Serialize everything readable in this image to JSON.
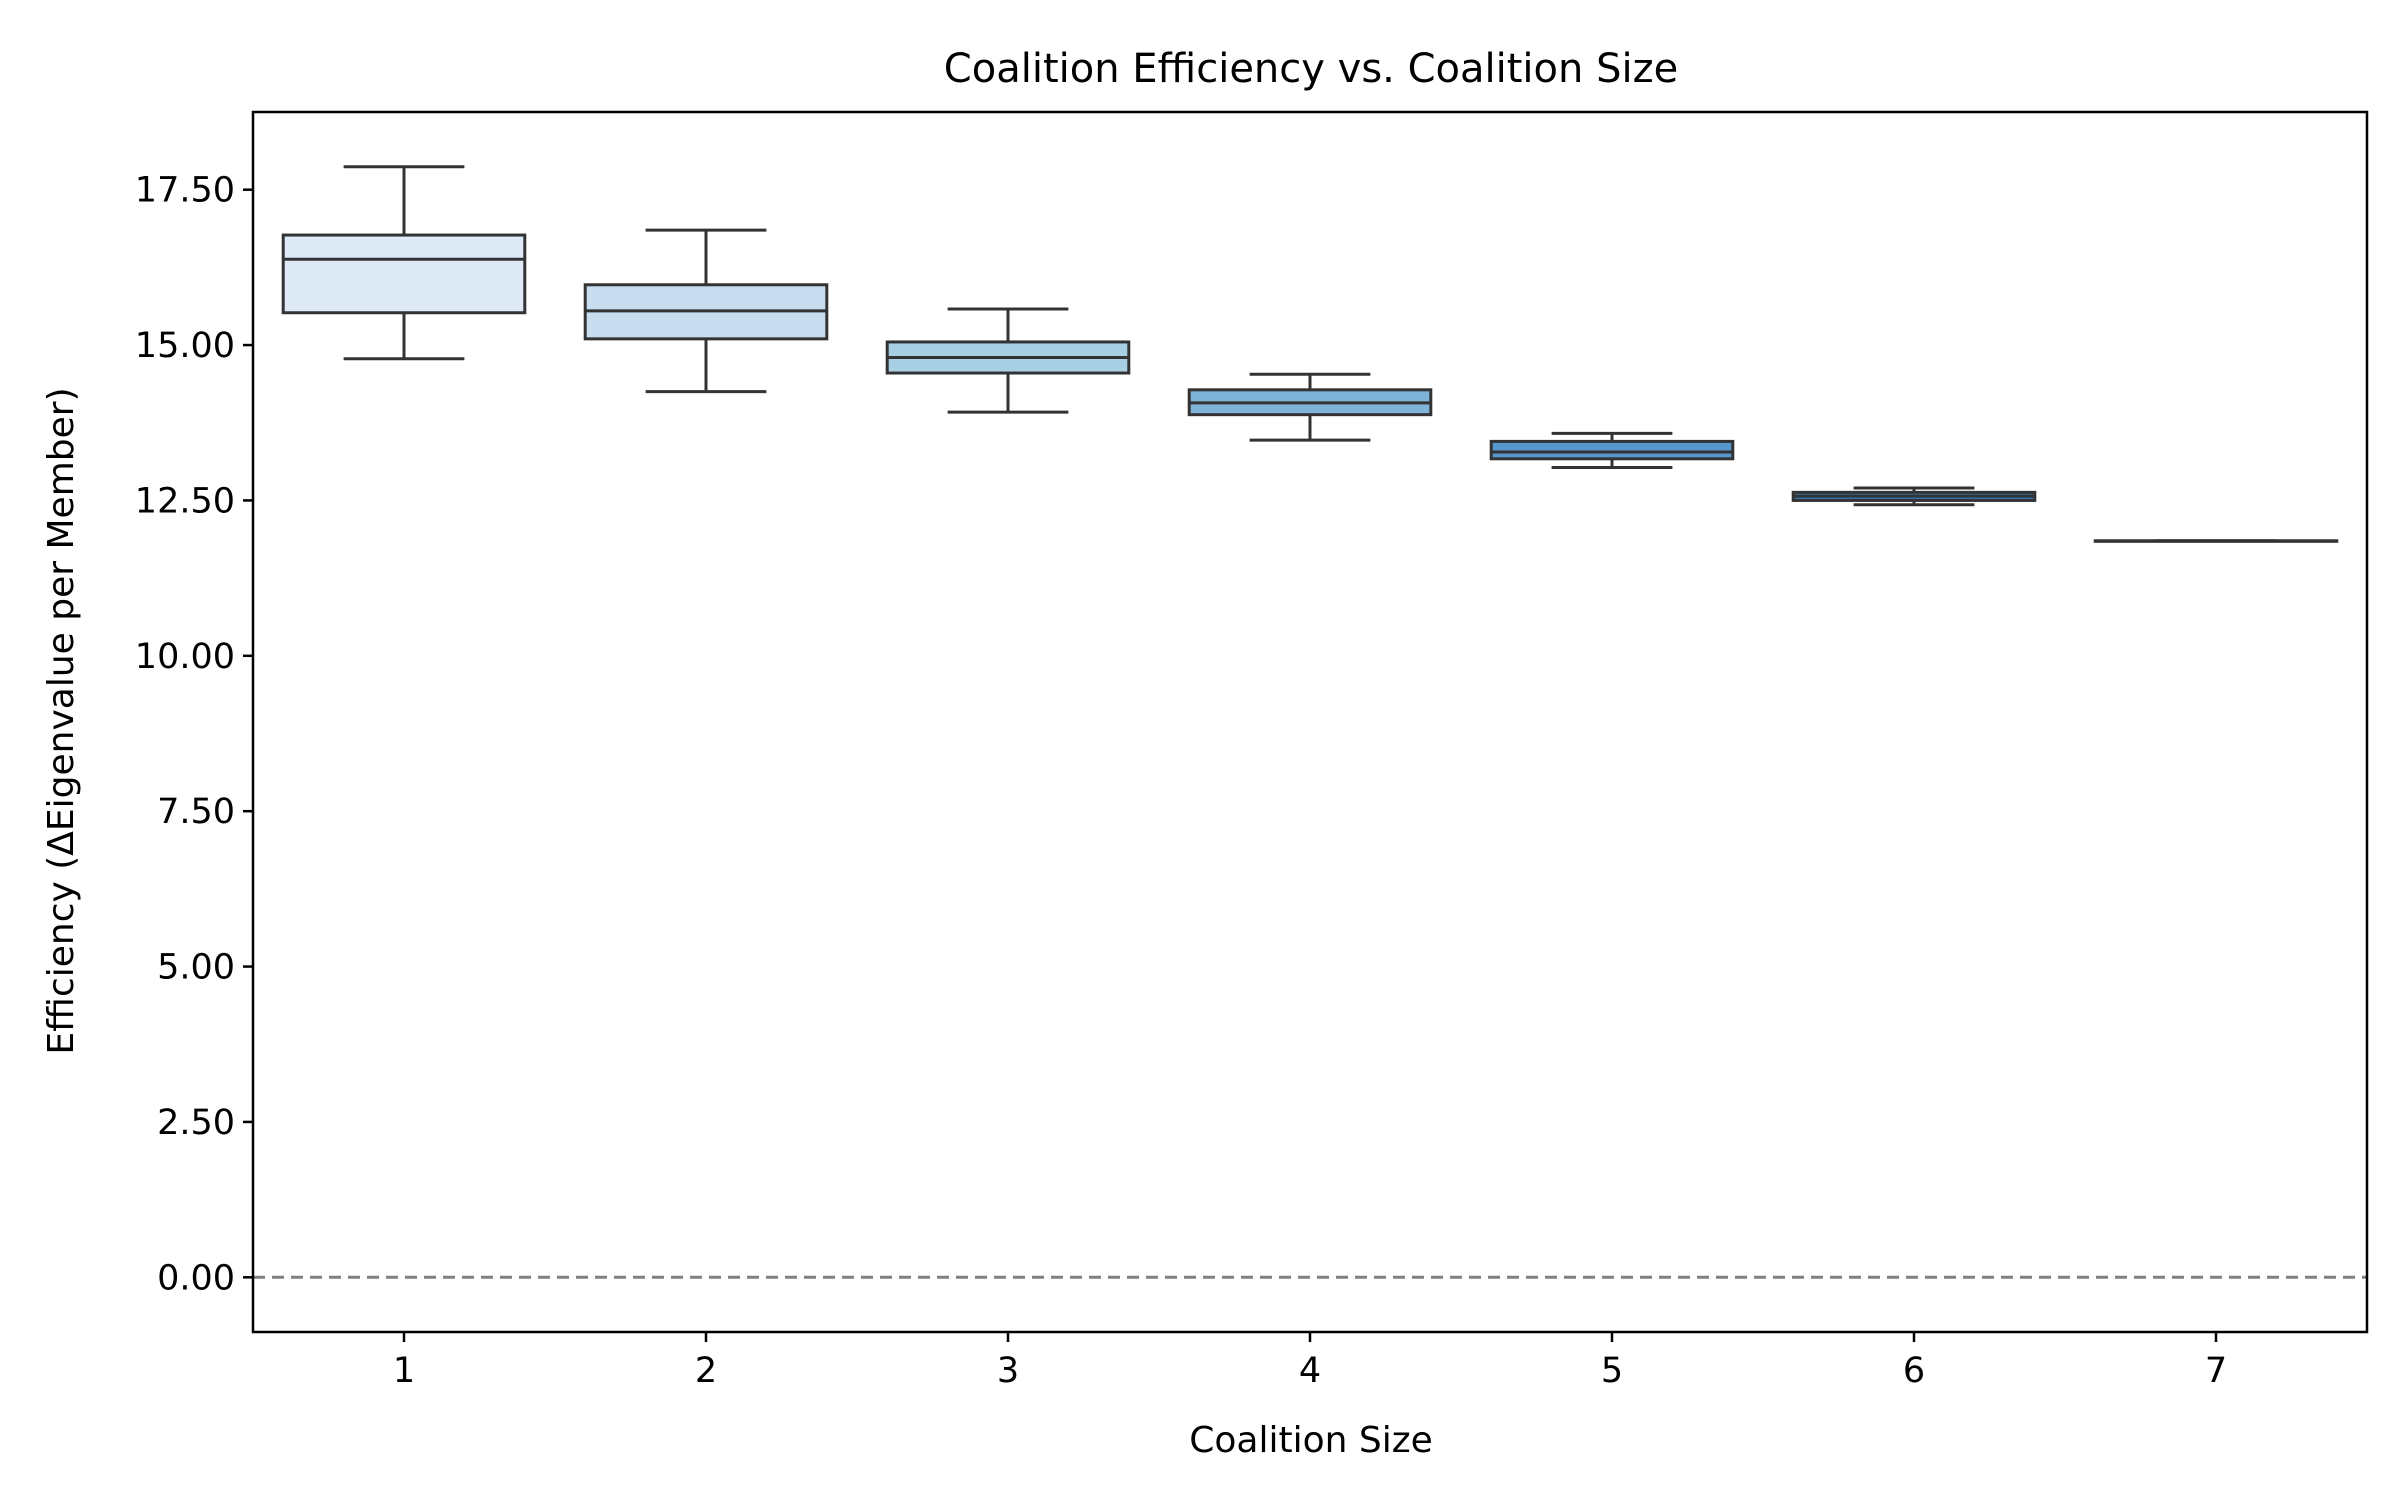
{
  "chart_data": {
    "type": "box",
    "title": "Coalition Efficiency vs. Coalition Size",
    "xlabel": "Coalition Size",
    "ylabel": "Efficiency (ΔEigenvalue per Member)",
    "categories": [
      "1",
      "2",
      "3",
      "4",
      "5",
      "6",
      "7"
    ],
    "ylim": [
      -0.88,
      18.75
    ],
    "yticks": [
      0,
      2.5,
      5,
      7.5,
      10,
      12.5,
      15,
      17.5
    ],
    "ytick_labels": [
      "0.00",
      "2.50",
      "5.00",
      "7.50",
      "10.00",
      "12.50",
      "15.00",
      "17.50"
    ],
    "reference_line": {
      "y": 0,
      "style": "dashed",
      "color": "#808080"
    },
    "boxes": [
      {
        "category": "1",
        "whisker_low": 14.78,
        "q1": 15.52,
        "median": 16.38,
        "q3": 16.77,
        "whisker_high": 17.87,
        "color": "#deebf7"
      },
      {
        "category": "2",
        "whisker_low": 14.25,
        "q1": 15.1,
        "median": 15.55,
        "q3": 15.97,
        "whisker_high": 16.85,
        "color": "#c9ddf0"
      },
      {
        "category": "3",
        "whisker_low": 13.92,
        "q1": 14.55,
        "median": 14.8,
        "q3": 15.05,
        "whisker_high": 15.58,
        "color": "#a9cfe5"
      },
      {
        "category": "4",
        "whisker_low": 13.47,
        "q1": 13.88,
        "median": 14.07,
        "q3": 14.28,
        "whisker_high": 14.53,
        "color": "#7fb3d8"
      },
      {
        "category": "5",
        "whisker_low": 13.03,
        "q1": 13.17,
        "median": 13.28,
        "q3": 13.45,
        "whisker_high": 13.58,
        "color": "#5696cb"
      },
      {
        "category": "6",
        "whisker_low": 12.43,
        "q1": 12.5,
        "median": 12.57,
        "q3": 12.63,
        "whisker_high": 12.7,
        "color": "#3575b5"
      },
      {
        "category": "7",
        "whisker_low": 11.85,
        "q1": 11.85,
        "median": 11.85,
        "q3": 11.85,
        "whisker_high": 11.85,
        "color": "#1c5aa6"
      }
    ]
  }
}
